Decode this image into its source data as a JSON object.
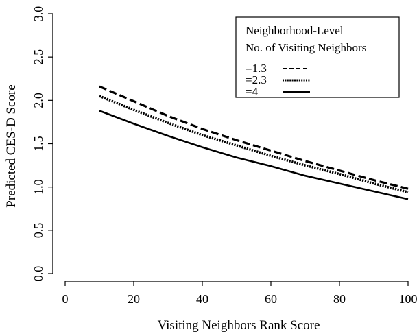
{
  "chart_data": {
    "type": "line",
    "title": "",
    "xlabel": "Visiting Neighbors Rank Score",
    "ylabel": "Predicted CES-D Score",
    "xlim": [
      0,
      100
    ],
    "ylim": [
      0.0,
      3.0
    ],
    "x_ticks": [
      "0",
      "20",
      "40",
      "60",
      "80",
      "100"
    ],
    "y_ticks": [
      "0.0",
      "0.5",
      "1.0",
      "1.5",
      "2.0",
      "2.5",
      "3.0"
    ],
    "grid": false,
    "legend": {
      "placement": "top-right",
      "title_lines": [
        "Neighborhood-Level",
        "No. of Visiting Neighbors"
      ]
    },
    "x": [
      10,
      20,
      30,
      40,
      50,
      60,
      70,
      80,
      90,
      100
    ],
    "series": [
      {
        "name": "=1.3",
        "line_style": "dashed",
        "values": [
          2.16,
          1.99,
          1.82,
          1.67,
          1.54,
          1.42,
          1.3,
          1.19,
          1.08,
          0.98
        ]
      },
      {
        "name": "=2.3",
        "line_style": "dotted",
        "values": [
          2.05,
          1.89,
          1.74,
          1.6,
          1.48,
          1.36,
          1.25,
          1.15,
          1.04,
          0.94
        ]
      },
      {
        "name": "=4",
        "line_style": "solid",
        "values": [
          1.88,
          1.73,
          1.59,
          1.46,
          1.34,
          1.24,
          1.13,
          1.04,
          0.95,
          0.86
        ]
      }
    ],
    "line_color": "#000000"
  }
}
